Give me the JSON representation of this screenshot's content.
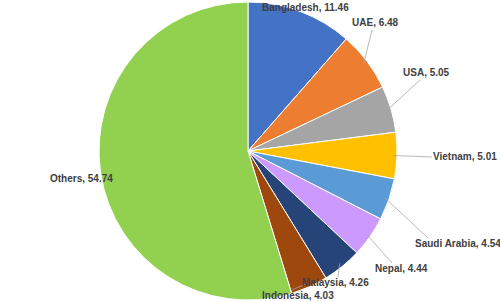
{
  "chart_data": {
    "type": "pie",
    "categories": [
      "Bangladesh",
      "UAE",
      "USA",
      "Vietnam",
      "Saudi Arabia",
      "Nepal",
      "Malaysia",
      "Indonesia",
      "Others"
    ],
    "values": [
      11.46,
      6.48,
      5.05,
      5.01,
      4.54,
      4.44,
      4.26,
      4.03,
      54.74
    ],
    "value_labels": [
      ", 11.46",
      ", 6.48",
      ", 5.05",
      ", 5.01",
      ", 4.54",
      ", 4.44",
      ", 4.26",
      ", 4.03",
      ", 54.74"
    ],
    "colors": [
      "#4472c4",
      "#ed7d31",
      "#a5a5a5",
      "#ffc000",
      "#5b9bd5",
      "#cc99ff",
      "#264478",
      "#9e480e",
      "#92d050"
    ],
    "data_labels": true
  }
}
